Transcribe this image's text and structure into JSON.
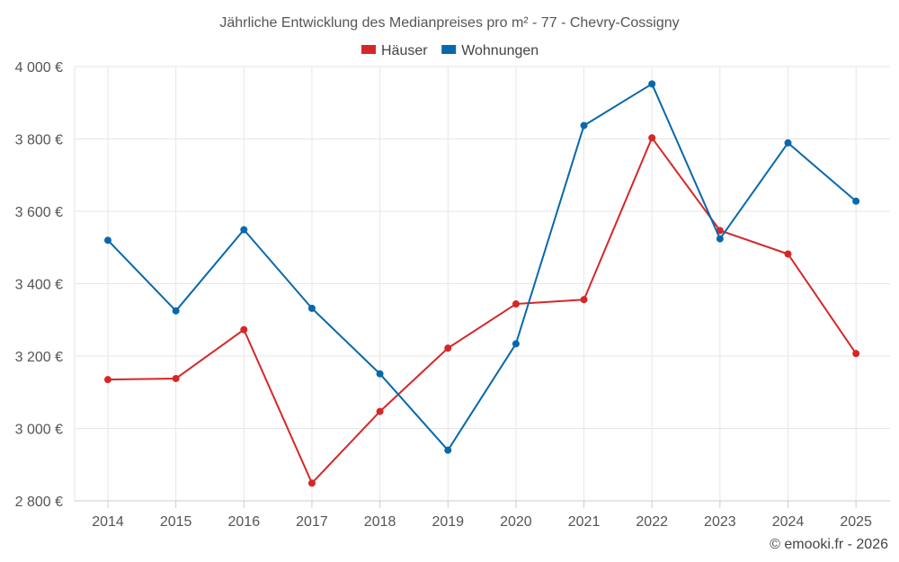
{
  "chart_data": {
    "type": "line",
    "title": "Jährliche Entwicklung des Medianpreises pro m² - 77 - Chevry-Cossigny",
    "categories": [
      "2014",
      "2015",
      "2016",
      "2017",
      "2018",
      "2019",
      "2020",
      "2021",
      "2022",
      "2023",
      "2024",
      "2025"
    ],
    "series": [
      {
        "name": "Häuser",
        "color": "#d62728",
        "values": [
          3135,
          3138,
          3273,
          2849,
          3047,
          3222,
          3344,
          3356,
          3803,
          3547,
          3482,
          3207
        ]
      },
      {
        "name": "Wohnungen",
        "color": "#0868ac",
        "values": [
          3520,
          3325,
          3549,
          3332,
          3151,
          2940,
          3234,
          3837,
          3952,
          3524,
          3789,
          3628
        ]
      }
    ],
    "ylim": [
      2800,
      4000
    ],
    "yticks": [
      "2 800 €",
      "3 000 €",
      "3 200 €",
      "3 400 €",
      "3 600 €",
      "3 800 €",
      "4 000 €"
    ],
    "ytick_values": [
      2800,
      3000,
      3200,
      3400,
      3600,
      3800,
      4000
    ],
    "grid": true,
    "legend_position": "top-center",
    "xlabel": "",
    "ylabel": ""
  },
  "credit": "© emooki.fr - 2026"
}
